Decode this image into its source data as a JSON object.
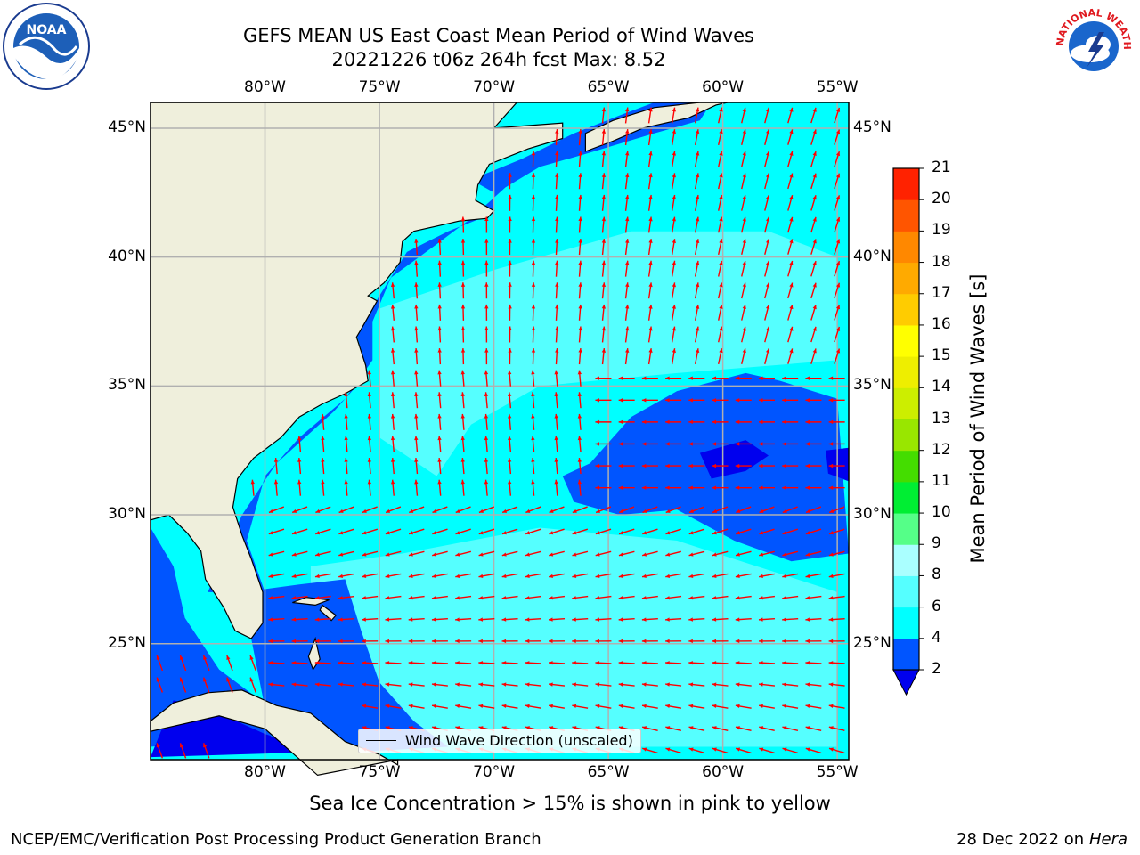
{
  "title": {
    "line1": "GEFS MEAN US East Coast Mean Period of Wind Waves",
    "line2": "20221226 t06z 264h fcst   Max: 8.52"
  },
  "map": {
    "lon_range": [
      -85,
      -54.5
    ],
    "lat_range": [
      20.5,
      46
    ],
    "lon_ticks": [
      "80°W",
      "75°W",
      "70°W",
      "65°W",
      "60°W",
      "55°W"
    ],
    "lat_ticks": [
      "45°N",
      "40°N",
      "35°N",
      "30°N",
      "25°N"
    ],
    "grid": true
  },
  "legend": {
    "label": "Wind Wave Direction (unscaled)",
    "arrow_color": "#ff0000"
  },
  "colorbar": {
    "label": "Mean Period of Wind Waves [s]",
    "ticks": [
      "2",
      "4",
      "6",
      "8",
      "9",
      "10",
      "11",
      "12",
      "13",
      "14",
      "15",
      "16",
      "17",
      "18",
      "19",
      "20",
      "21"
    ],
    "colors": [
      "#0055ff",
      "#00ffff",
      "#55ffff",
      "#aaffff",
      "#55ff88",
      "#00ee33",
      "#44dd00",
      "#99e600",
      "#ccee00",
      "#eeee00",
      "#ffff00",
      "#ffcc00",
      "#ffaa00",
      "#ff8800",
      "#ff5500",
      "#ff2200"
    ],
    "under_color": "#0000ee"
  },
  "note": "Sea Ice Concentration > 15% is shown in pink to yellow",
  "footer": {
    "left": "NCEP/EMC/Verification Post Processing Product Generation Branch",
    "date": "28 Dec 2022 on",
    "machine": "Hera"
  },
  "logos": {
    "noaa": "NOAA",
    "nws_text": "NATIONAL WEATHER SERVICE"
  }
}
